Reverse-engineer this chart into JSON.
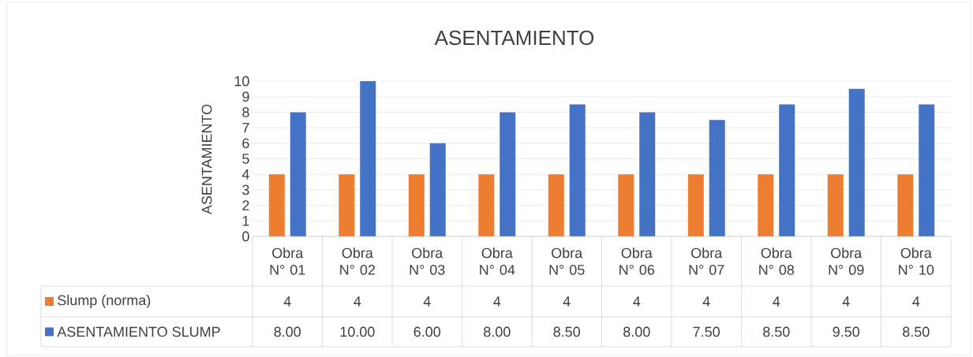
{
  "chart_data": {
    "type": "bar",
    "title": "ASENTAMIENTO",
    "ylabel": "ASENTAMIENTO",
    "categories": [
      "Obra N° 01",
      "Obra N° 02",
      "Obra N° 03",
      "Obra N° 04",
      "Obra N° 05",
      "Obra N° 06",
      "Obra N° 07",
      "Obra N° 08",
      "Obra N° 09",
      "Obra N° 10"
    ],
    "series": [
      {
        "name": "Slump (norma)",
        "color": "#ed7d31",
        "values": [
          4,
          4,
          4,
          4,
          4,
          4,
          4,
          4,
          4,
          4
        ],
        "value_labels": [
          "4",
          "4",
          "4",
          "4",
          "4",
          "4",
          "4",
          "4",
          "4",
          "4"
        ]
      },
      {
        "name": "ASENTAMIENTO SLUMP",
        "color": "#4472c4",
        "values": [
          8,
          10,
          6,
          8,
          8.5,
          8,
          7.5,
          8.5,
          9.5,
          8.5
        ],
        "value_labels": [
          "8.00",
          "10.00",
          "6.00",
          "8.00",
          "8.50",
          "8.00",
          "7.50",
          "8.50",
          "9.50",
          "8.50"
        ]
      }
    ],
    "ylim": [
      0,
      10
    ],
    "yticks": [
      0,
      1,
      2,
      3,
      4,
      5,
      6,
      7,
      8,
      9,
      10
    ],
    "grid": "y",
    "legend": "bottom"
  }
}
